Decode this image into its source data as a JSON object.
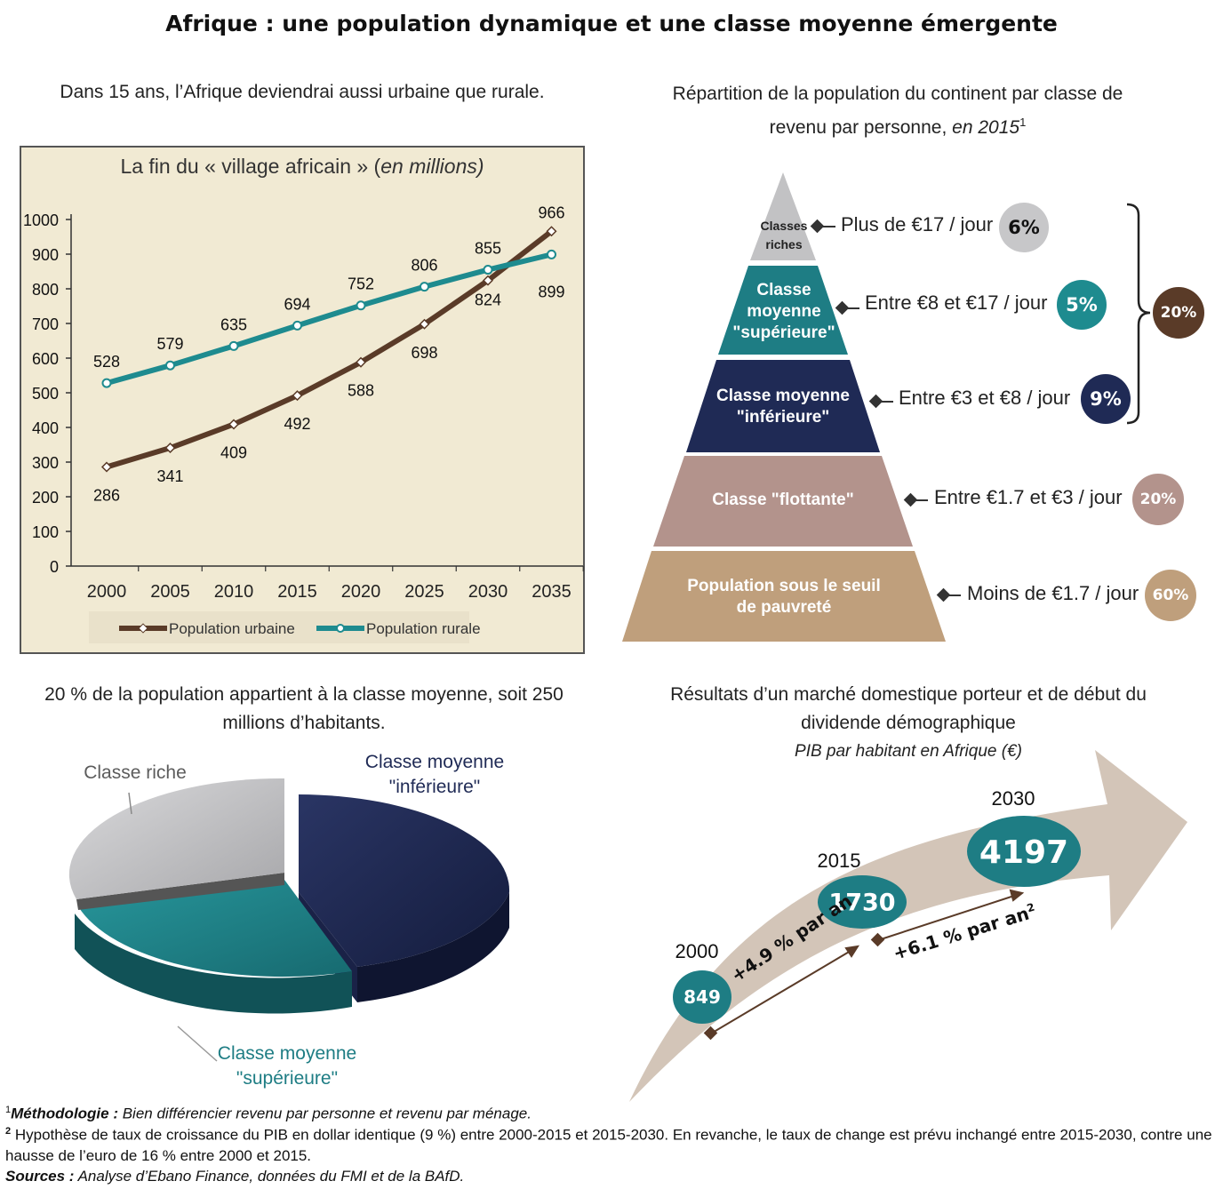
{
  "page": {
    "title": "Afrique : une population dynamique et une classe moyenne émergente"
  },
  "colors": {
    "urban": "#5a3b28",
    "rural": "#1e8b8f",
    "chart_bg": "#f1ead3",
    "riches": "#c2c2c4",
    "sup": "#1e7d84",
    "inf": "#1f2a55",
    "flottante": "#b3938c",
    "pauvrete": "#bf9f7c",
    "total": "#5a3b28",
    "arrow": "#d3c5b8"
  },
  "urban_section": {
    "subtitle": "Dans 15 ans, l’Afrique deviendrai aussi urbaine que rurale.",
    "chart_title": "La fin du « village africain » (",
    "chart_title_italic": "en millions)"
  },
  "chart_data": [
    {
      "type": "line",
      "title": "La fin du « village africain » (en millions)",
      "x": [
        2000,
        2005,
        2010,
        2015,
        2020,
        2025,
        2030,
        2035
      ],
      "ylim": [
        0,
        1000
      ],
      "yticks": [
        0,
        100,
        200,
        300,
        400,
        500,
        600,
        700,
        800,
        900,
        1000
      ],
      "series": [
        {
          "name": "Population urbaine",
          "values": [
            286,
            341,
            409,
            492,
            588,
            698,
            824,
            966
          ]
        },
        {
          "name": "Population rurale",
          "values": [
            528,
            579,
            635,
            694,
            752,
            806,
            855,
            899
          ]
        }
      ],
      "legend": "bottom"
    },
    {
      "type": "pie",
      "categories": [
        "Classe riche",
        "Classe moyenne \"supérieure\"",
        "Classe moyenne \"inférieure\""
      ],
      "values": [
        6,
        5,
        9
      ]
    },
    {
      "type": "bar",
      "title": "PIB par habitant en Afrique (€)",
      "categories": [
        "2000",
        "2015",
        "2030"
      ],
      "values": [
        849,
        1730,
        4197
      ]
    }
  ],
  "pyramid_section": {
    "subtitle_line1": "Répartition de la population du continent par classe de",
    "subtitle_line2": "revenu par personne,",
    "subtitle_italic": "en 2015",
    "subtitle_sup": "1",
    "levels": [
      {
        "label": "Classes riches",
        "income": "Plus de €17 / jour",
        "pct": "6%"
      },
      {
        "label": "Classe moyenne \"supérieure\"",
        "income": "Entre €8 et €17 / jour",
        "pct": "5%"
      },
      {
        "label": "Classe moyenne \"inférieure\"",
        "income": "Entre €3 et €8 / jour",
        "pct": "9%"
      },
      {
        "label": "Classe \"flottante\"",
        "income": "Entre €1.7 et €3 / jour",
        "pct": "20%"
      },
      {
        "label": "Population sous le seuil de pauvreté",
        "income": "Moins de €1.7 / jour",
        "pct": "60%"
      }
    ],
    "bracket_total": "20%"
  },
  "pie_section": {
    "subtitle_line1": "20 % de la population appartient à la classe moyenne, soit 250",
    "subtitle_line2": "millions d’habitants.",
    "label_riche": "Classe riche",
    "label_inf_1": "Classe moyenne",
    "label_inf_2": "\"inférieure\"",
    "label_sup_1": "Classe moyenne",
    "label_sup_2": "\"supérieure\""
  },
  "gdp_section": {
    "subtitle_line1": "Résultats d’un marché domestique porteur et de début du",
    "subtitle_line2": "dividende démographique",
    "subtitle_italic": "PIB par habitant en Afrique (€)",
    "growth1": "+4.9 % par an",
    "growth2": "+6.1 % par an",
    "growth2_sup": "2"
  },
  "footnotes": {
    "n1_sup": "1",
    "n1_bold": "Méthodologie :",
    "n1_text": " Bien différencier revenu par personne et revenu par ménage.",
    "n2_sup": "2",
    "n2_text": " Hypothèse de taux de croissance du PIB en dollar identique (9 %) entre 2000-2015 et 2015-2030. En revanche, le taux de change est prévu inchangé entre 2015-2030, contre une hausse de l’euro de 16 % entre 2000 et 2015.",
    "sources_bold": "Sources :",
    "sources_text": " Analyse d’Ebano Finance, données du FMI et de la BAfD."
  }
}
